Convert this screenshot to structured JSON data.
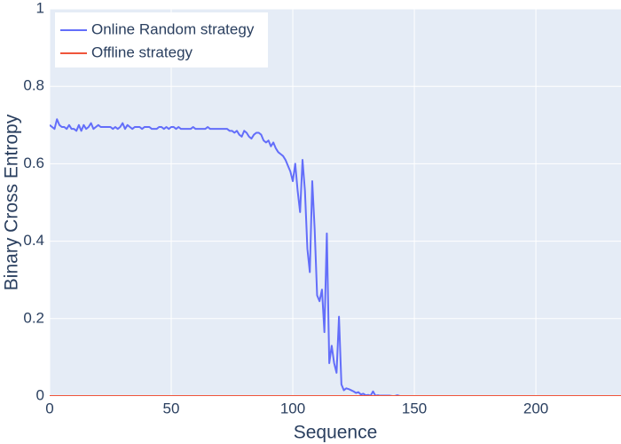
{
  "chart_data": {
    "type": "line",
    "xlabel": "Sequence",
    "ylabel": "Binary Cross Entropy",
    "xlim": [
      0,
      235
    ],
    "ylim": [
      0,
      1
    ],
    "xticks": [
      0,
      50,
      100,
      150,
      200
    ],
    "yticks": [
      0,
      0.2,
      0.4,
      0.6,
      0.8,
      1
    ],
    "grid": true,
    "legend": "upper-left",
    "series": [
      {
        "name": "Online Random strategy",
        "color": "#636efa",
        "x": [
          0,
          1,
          2,
          3,
          4,
          5,
          6,
          7,
          8,
          9,
          10,
          11,
          12,
          13,
          14,
          15,
          16,
          17,
          18,
          19,
          20,
          21,
          22,
          23,
          24,
          25,
          26,
          27,
          28,
          29,
          30,
          31,
          32,
          33,
          34,
          35,
          36,
          37,
          38,
          39,
          40,
          41,
          42,
          43,
          44,
          45,
          46,
          47,
          48,
          49,
          50,
          51,
          52,
          53,
          54,
          55,
          56,
          57,
          58,
          59,
          60,
          61,
          62,
          63,
          64,
          65,
          66,
          67,
          68,
          69,
          70,
          71,
          72,
          73,
          74,
          75,
          76,
          77,
          78,
          79,
          80,
          81,
          82,
          83,
          84,
          85,
          86,
          87,
          88,
          89,
          90,
          91,
          92,
          93,
          94,
          95,
          96,
          97,
          98,
          99,
          100,
          101,
          102,
          103,
          104,
          105,
          106,
          107,
          108,
          109,
          110,
          111,
          112,
          113,
          114,
          115,
          116,
          117,
          118,
          119,
          120,
          121,
          122,
          123,
          124,
          125,
          126,
          127,
          128,
          129,
          130,
          131,
          132,
          133,
          134,
          135,
          136,
          137,
          138,
          139,
          140,
          141,
          142,
          143,
          144,
          145,
          146,
          147,
          148,
          149,
          150,
          151,
          152,
          153,
          154,
          155
        ],
        "values": [
          0.7,
          0.695,
          0.69,
          0.715,
          0.7,
          0.695,
          0.695,
          0.69,
          0.7,
          0.69,
          0.69,
          0.685,
          0.7,
          0.685,
          0.7,
          0.69,
          0.695,
          0.705,
          0.69,
          0.695,
          0.7,
          0.695,
          0.695,
          0.695,
          0.695,
          0.695,
          0.69,
          0.695,
          0.69,
          0.695,
          0.705,
          0.69,
          0.7,
          0.695,
          0.69,
          0.695,
          0.695,
          0.695,
          0.69,
          0.695,
          0.695,
          0.695,
          0.69,
          0.69,
          0.69,
          0.695,
          0.695,
          0.69,
          0.695,
          0.69,
          0.695,
          0.695,
          0.69,
          0.695,
          0.69,
          0.69,
          0.69,
          0.69,
          0.69,
          0.695,
          0.69,
          0.69,
          0.69,
          0.69,
          0.69,
          0.695,
          0.69,
          0.69,
          0.69,
          0.69,
          0.69,
          0.69,
          0.69,
          0.69,
          0.685,
          0.685,
          0.68,
          0.685,
          0.675,
          0.67,
          0.685,
          0.68,
          0.67,
          0.665,
          0.675,
          0.68,
          0.68,
          0.675,
          0.66,
          0.655,
          0.66,
          0.645,
          0.655,
          0.64,
          0.63,
          0.625,
          0.62,
          0.61,
          0.595,
          0.58,
          0.555,
          0.6,
          0.53,
          0.475,
          0.61,
          0.53,
          0.38,
          0.32,
          0.555,
          0.43,
          0.26,
          0.245,
          0.275,
          0.165,
          0.42,
          0.085,
          0.13,
          0.085,
          0.06,
          0.205,
          0.03,
          0.015,
          0.02,
          0.018,
          0.015,
          0.012,
          0.008,
          0.01,
          0.004,
          0.006,
          0.002,
          0.003,
          0.001,
          0.012,
          0.001,
          0.002,
          0.001,
          0.001,
          0.001,
          0.001,
          0.001,
          0,
          0,
          0.002,
          0,
          0,
          0,
          0,
          0,
          0,
          0,
          0,
          0,
          0,
          0,
          0
        ]
      },
      {
        "name": "Offline strategy",
        "color": "#ef553b",
        "x": [
          0,
          235
        ],
        "values": [
          0,
          0
        ]
      }
    ]
  }
}
